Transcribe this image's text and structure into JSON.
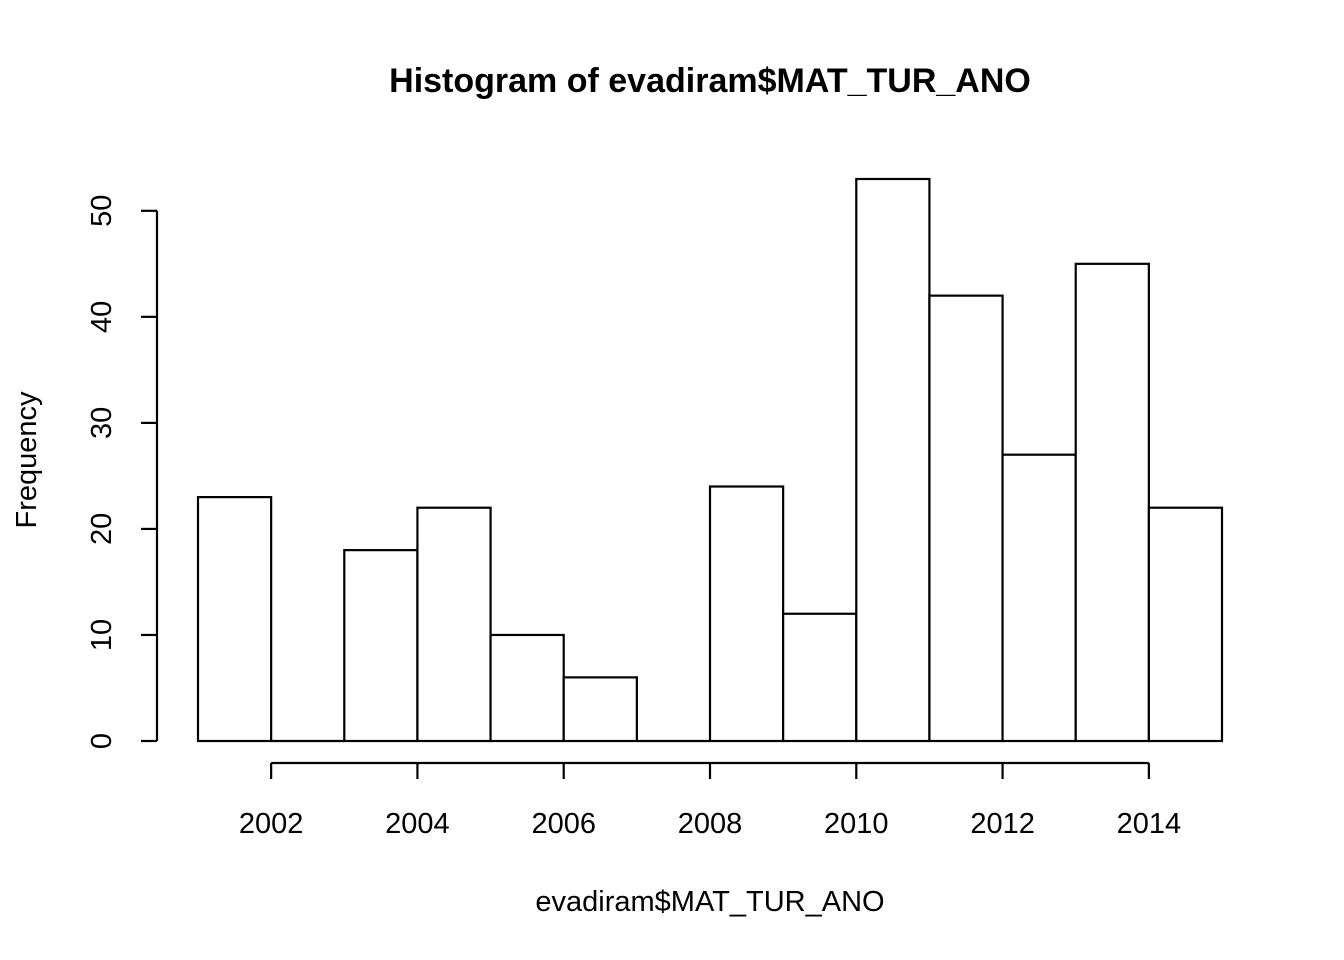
{
  "chart_data": {
    "type": "bar",
    "title": "Histogram of evadiram$MAT_TUR_ANO",
    "xlabel": "evadiram$MAT_TUR_ANO",
    "ylabel": "Frequency",
    "bins": [
      {
        "from": 2001,
        "to": 2002,
        "count": 23
      },
      {
        "from": 2002,
        "to": 2003,
        "count": 0
      },
      {
        "from": 2003,
        "to": 2004,
        "count": 18
      },
      {
        "from": 2004,
        "to": 2005,
        "count": 22
      },
      {
        "from": 2005,
        "to": 2006,
        "count": 10
      },
      {
        "from": 2006,
        "to": 2007,
        "count": 6
      },
      {
        "from": 2007,
        "to": 2008,
        "count": 0
      },
      {
        "from": 2008,
        "to": 2009,
        "count": 24
      },
      {
        "from": 2009,
        "to": 2010,
        "count": 12
      },
      {
        "from": 2010,
        "to": 2011,
        "count": 53
      },
      {
        "from": 2011,
        "to": 2012,
        "count": 42
      },
      {
        "from": 2012,
        "to": 2013,
        "count": 27
      },
      {
        "from": 2013,
        "to": 2014,
        "count": 45
      },
      {
        "from": 2014,
        "to": 2015,
        "count": 22
      }
    ],
    "xlim": [
      2001,
      2015
    ],
    "ylim": [
      0,
      53
    ],
    "x_ticks": [
      2002,
      2004,
      2006,
      2008,
      2010,
      2012,
      2014
    ],
    "y_ticks": [
      0,
      10,
      20,
      30,
      40,
      50
    ],
    "x_tick_labels": [
      "2002",
      "2004",
      "2006",
      "2008",
      "2010",
      "2012",
      "2014"
    ],
    "y_tick_labels": [
      "0",
      "10",
      "20",
      "30",
      "40",
      "50"
    ],
    "grid": false,
    "legend": "none"
  }
}
